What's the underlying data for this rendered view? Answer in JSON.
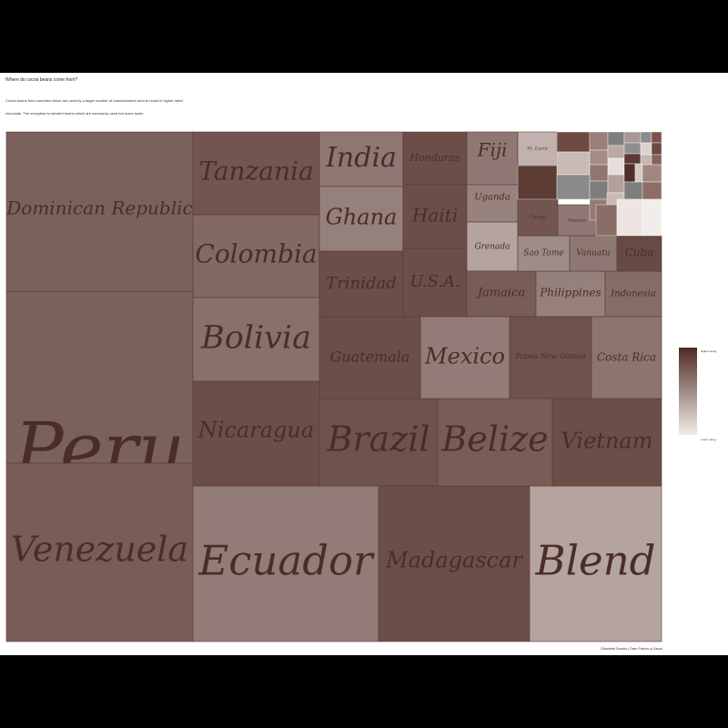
{
  "header": {
    "title": "Where do cocoa beans come from?",
    "subtitle_line1": "Cocoa beans from countries which are used by a larger number of manufacturers tend to result in higher rated",
    "subtitle_line2": "chocolate. The exception is blended beans which are commonly used but score lower."
  },
  "caption": "Elisabetta Zandolo | Data: Flavors of Cacao",
  "legend": {
    "high_label": "Higher rating",
    "low_label": "Lower rating",
    "color_high": "#4d2b24",
    "color_low": "#f3ecea"
  },
  "chart_data": {
    "type": "treemap",
    "title": "Where do cocoa beans come from?",
    "size_measure": "number of manufacturers",
    "color_measure": "rating",
    "nodes": [
      {
        "name": "Peru",
        "rating": 0.72
      },
      {
        "name": "Venezuela",
        "rating": 0.74
      },
      {
        "name": "Dominican Republic",
        "rating": 0.72
      },
      {
        "name": "Ecuador",
        "rating": 0.58
      },
      {
        "name": "Madagascar",
        "rating": 0.82
      },
      {
        "name": "Blend",
        "rating": 0.38
      },
      {
        "name": "Tanzania",
        "rating": 0.78
      },
      {
        "name": "Colombia",
        "rating": 0.68
      },
      {
        "name": "Bolivia",
        "rating": 0.64
      },
      {
        "name": "Nicaragua",
        "rating": 0.82
      },
      {
        "name": "India",
        "rating": 0.6
      },
      {
        "name": "Ghana",
        "rating": 0.56
      },
      {
        "name": "Trinidad",
        "rating": 0.82
      },
      {
        "name": "Honduras",
        "rating": 0.82
      },
      {
        "name": "Haiti",
        "rating": 0.82
      },
      {
        "name": "U.S.A.",
        "rating": 0.82
      },
      {
        "name": "Fiji",
        "rating": 0.6
      },
      {
        "name": "Uganda",
        "rating": 0.55
      },
      {
        "name": "Grenada",
        "rating": 0.38
      },
      {
        "name": "St. Lucia",
        "rating": 0.3
      },
      {
        "name": "Jamaica",
        "rating": 0.74
      },
      {
        "name": "Philippines",
        "rating": 0.56
      },
      {
        "name": "Indonesia",
        "rating": 0.66
      },
      {
        "name": "Sao Tome",
        "rating": 0.5
      },
      {
        "name": "Vanuatu",
        "rating": 0.6
      },
      {
        "name": "Cuba",
        "rating": 0.84
      },
      {
        "name": "Congo",
        "rating": 0.78
      },
      {
        "name": "Panama",
        "rating": 0.6
      },
      {
        "name": "Brazil",
        "rating": 0.8
      },
      {
        "name": "Belize",
        "rating": 0.74
      },
      {
        "name": "Vietnam",
        "rating": 0.82
      },
      {
        "name": "Guatemala",
        "rating": 0.82
      },
      {
        "name": "Mexico",
        "rating": 0.58
      },
      {
        "name": "Papua New Guinea",
        "rating": 0.8
      },
      {
        "name": "Costa Rica",
        "rating": 0.62
      }
    ]
  }
}
